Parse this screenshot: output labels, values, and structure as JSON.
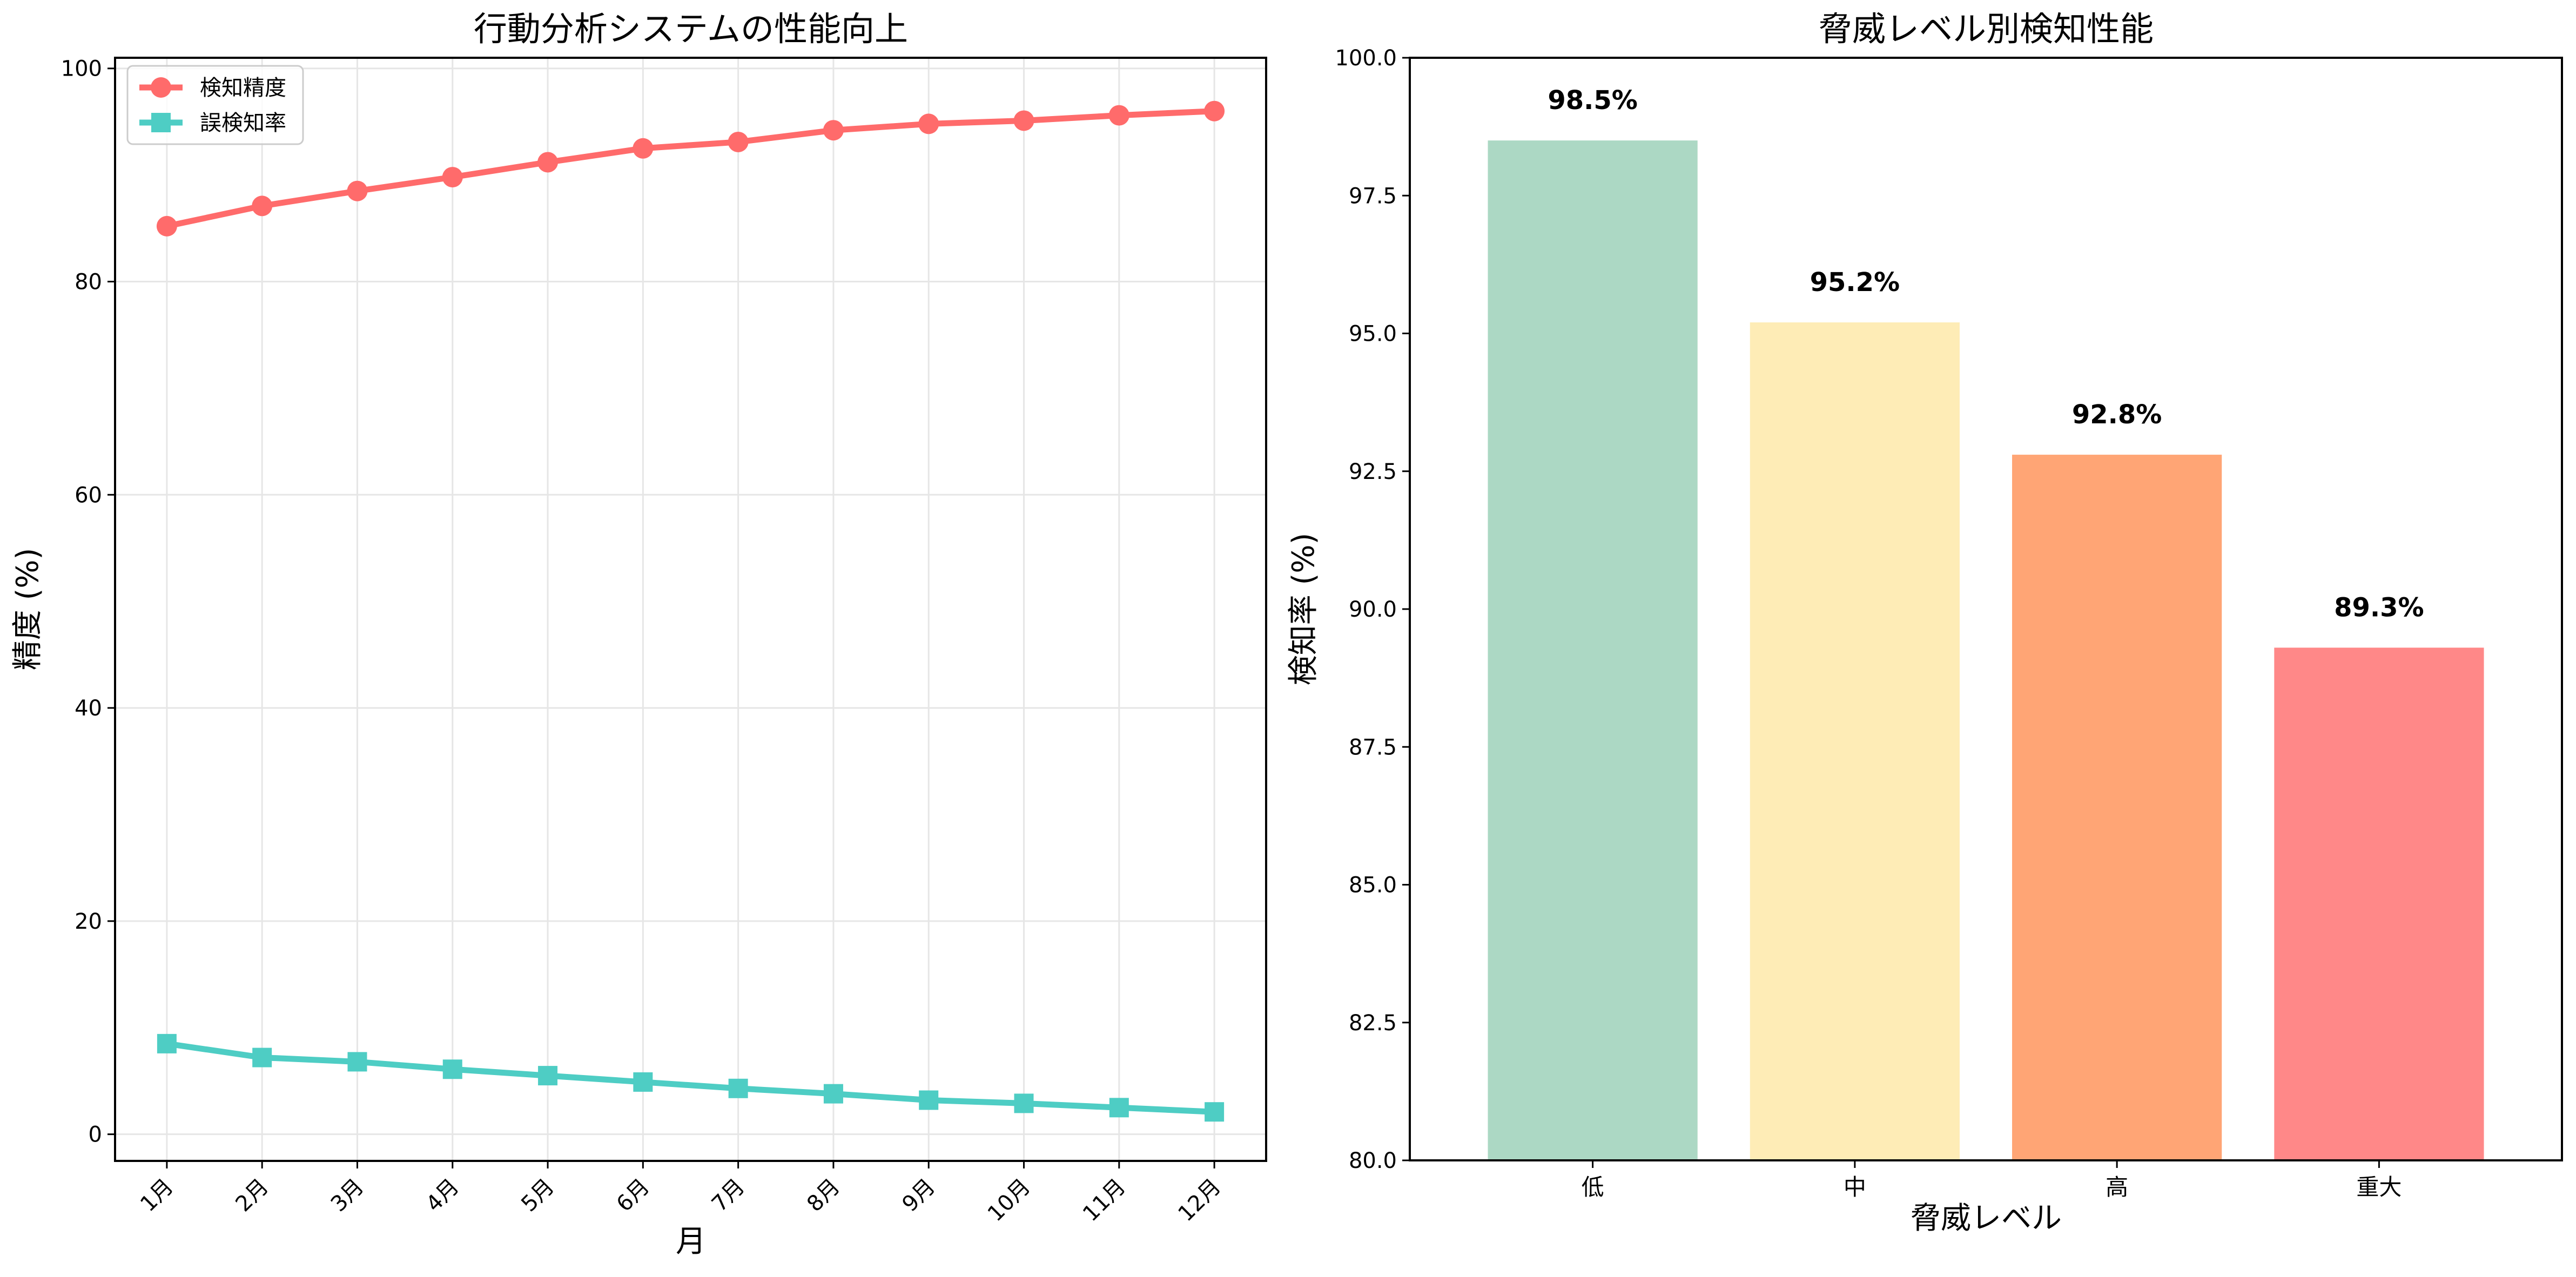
{
  "chart_data": [
    {
      "type": "line",
      "title": "行動分析システムの性能向上",
      "xlabel": "月",
      "ylabel": "精度 (%)",
      "categories": [
        "1月",
        "2月",
        "3月",
        "4月",
        "5月",
        "6月",
        "7月",
        "8月",
        "9月",
        "10月",
        "11月",
        "12月"
      ],
      "ylim": [
        -2.5,
        101
      ],
      "yticks": [
        "0",
        "20",
        "40",
        "60",
        "80",
        "100"
      ],
      "grid": true,
      "legend": "top-left",
      "series": [
        {
          "name": "検知精度",
          "marker": "circle",
          "color": "#ff6b6b",
          "values": [
            85.2,
            87.1,
            88.5,
            89.8,
            91.2,
            92.5,
            93.1,
            94.2,
            94.8,
            95.1,
            95.6,
            96.0
          ]
        },
        {
          "name": "誤検知率",
          "marker": "square",
          "color": "#4ecdc4",
          "values": [
            8.5,
            7.2,
            6.8,
            6.1,
            5.5,
            4.9,
            4.3,
            3.8,
            3.2,
            2.9,
            2.5,
            2.1
          ]
        }
      ]
    },
    {
      "type": "bar",
      "title": "脅威レベル別検知性能",
      "xlabel": "脅威レベル",
      "ylabel": "検知率 (%)",
      "categories": [
        "低",
        "中",
        "高",
        "重大"
      ],
      "values": [
        98.5,
        95.2,
        92.8,
        89.3
      ],
      "data_labels": [
        "98.5%",
        "95.2%",
        "92.8%",
        "89.3%"
      ],
      "colors": [
        "#acd8c4",
        "#feecb6",
        "#ffa575",
        "#ff8888"
      ],
      "ylim": [
        80.0,
        100.0
      ],
      "yticks": [
        "80.0",
        "82.5",
        "85.0",
        "87.5",
        "90.0",
        "92.5",
        "95.0",
        "97.5",
        "100.0"
      ],
      "grid": false
    }
  ]
}
